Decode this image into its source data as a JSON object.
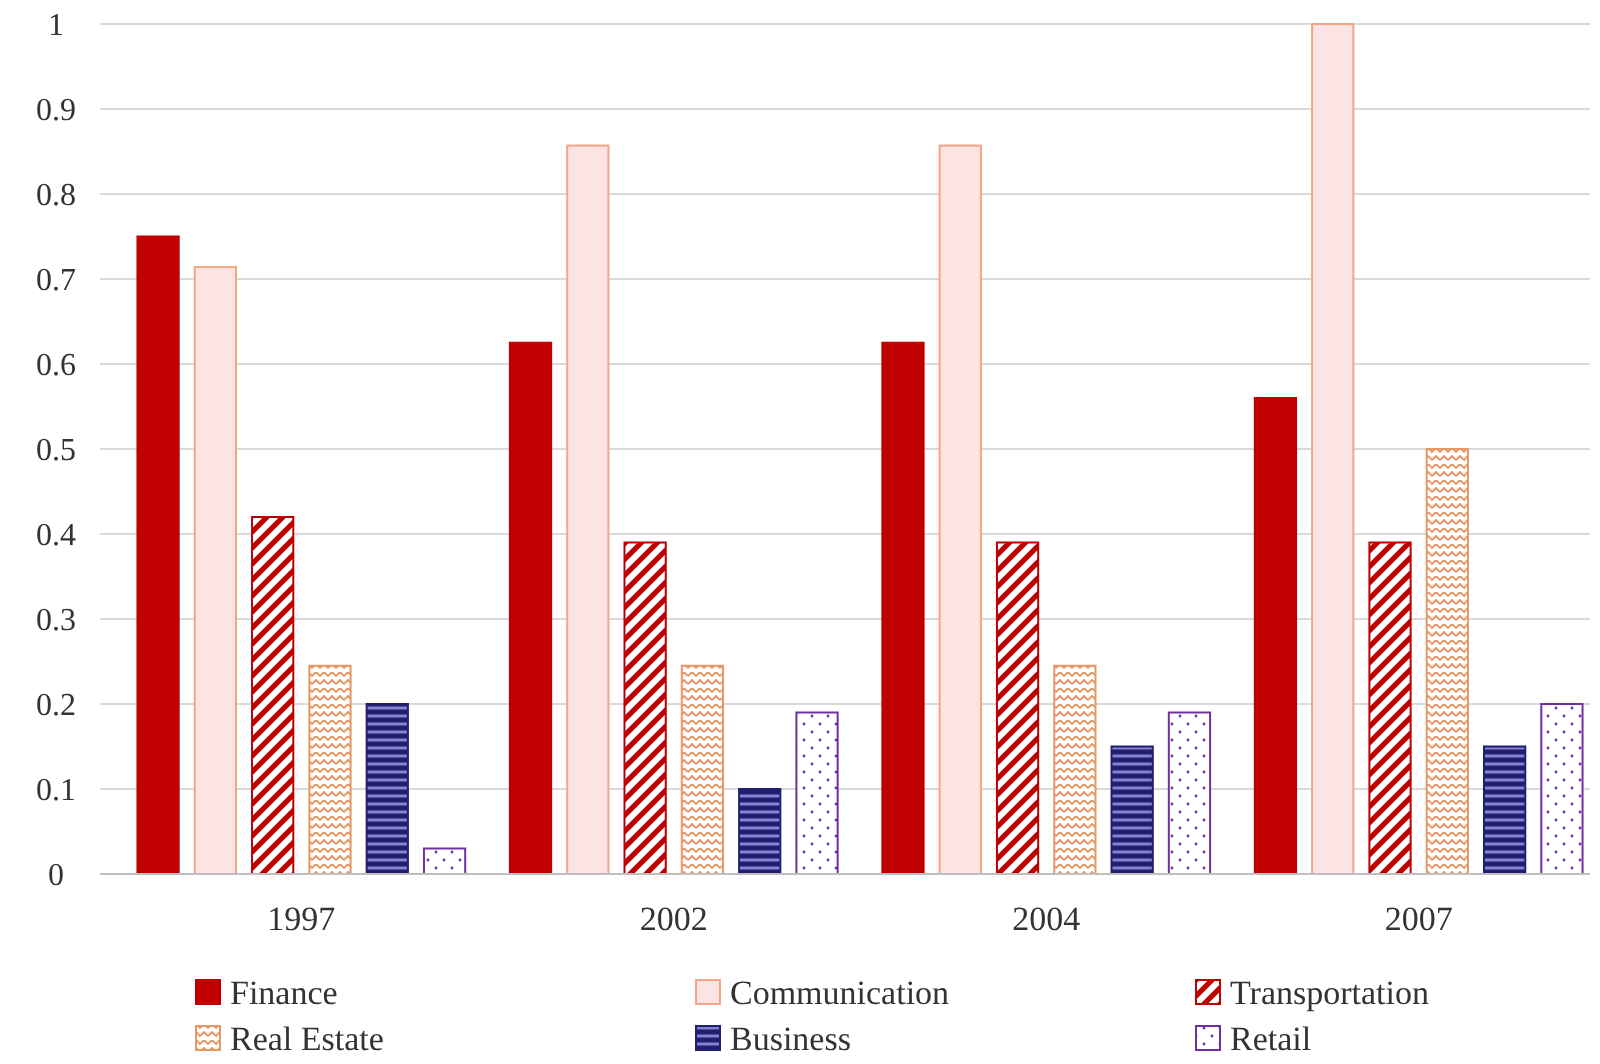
{
  "chart_data": {
    "type": "bar",
    "categories": [
      "1997",
      "2002",
      "2004",
      "2007"
    ],
    "series": [
      {
        "name": "Finance",
        "color": "#c00000",
        "values": [
          0.75,
          0.625,
          0.625,
          0.56
        ]
      },
      {
        "name": "Communication",
        "color": "#f4a582",
        "values": [
          0.714,
          0.857,
          0.857,
          1.0
        ]
      },
      {
        "name": "Transportation",
        "color": "#c00000",
        "values": [
          0.42,
          0.39,
          0.39,
          0.39
        ]
      },
      {
        "name": "Real Estate",
        "color": "#e59866",
        "values": [
          0.245,
          0.245,
          0.245,
          0.5
        ]
      },
      {
        "name": "Business",
        "color": "#1f1f6e",
        "values": [
          0.2,
          0.1,
          0.15,
          0.15
        ]
      },
      {
        "name": "Retail",
        "color": "#7030a0",
        "values": [
          0.03,
          0.19,
          0.19,
          0.2
        ]
      }
    ],
    "ylim": [
      0,
      1
    ],
    "yticks": [
      0,
      0.1,
      0.2,
      0.3,
      0.4,
      0.5,
      0.6,
      0.7,
      0.8,
      0.9,
      1
    ],
    "grid": "y",
    "legend": "bottom"
  }
}
